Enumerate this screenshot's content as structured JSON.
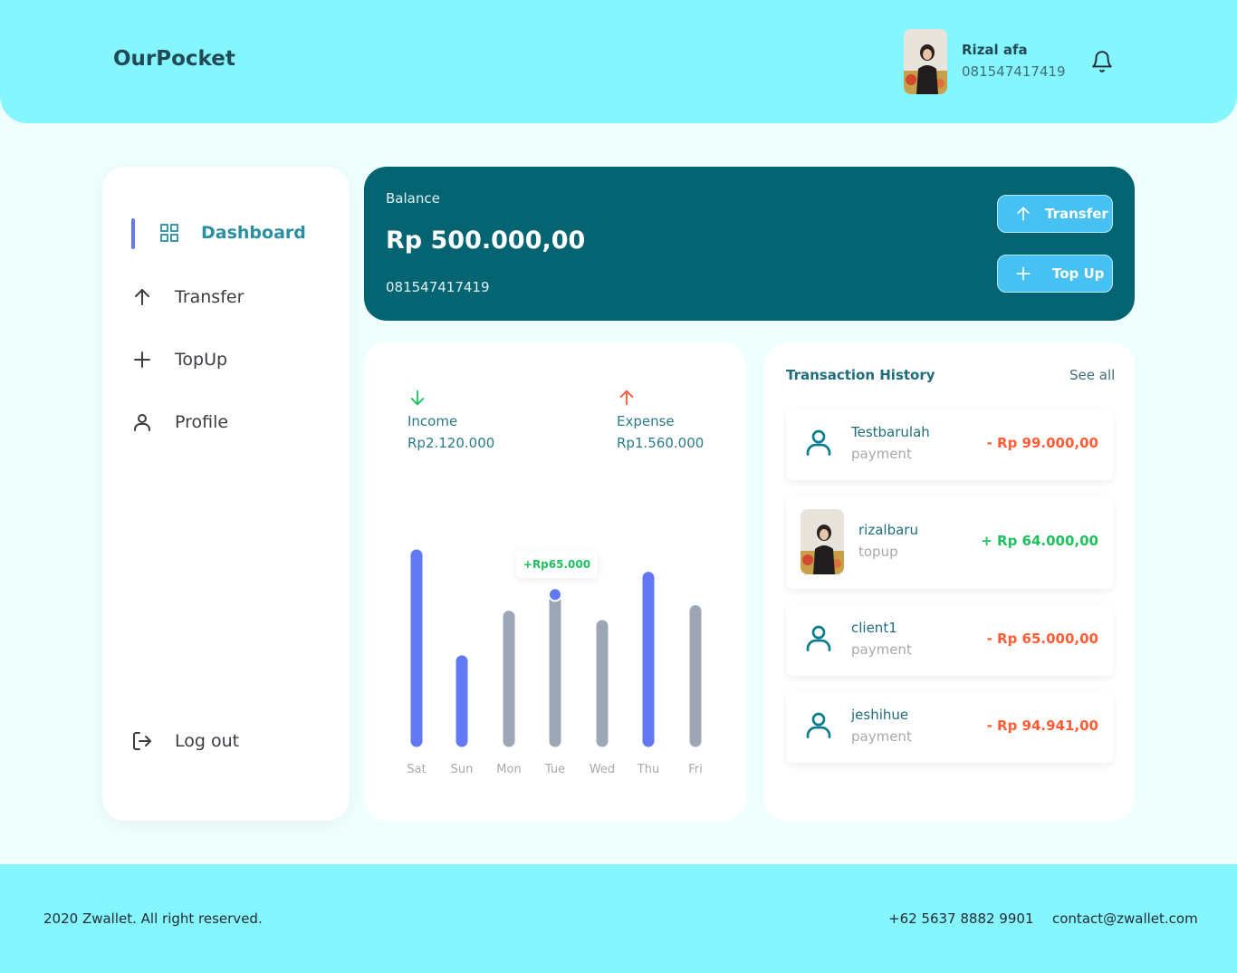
{
  "header": {
    "brand": "OurPocket",
    "user": {
      "name": "Rizal afa",
      "phone": "081547417419"
    }
  },
  "sidebar": {
    "items": [
      {
        "label": "Dashboard",
        "icon": "grid-icon",
        "active": true
      },
      {
        "label": "Transfer",
        "icon": "arrow-up-icon"
      },
      {
        "label": "TopUp",
        "icon": "plus-icon"
      },
      {
        "label": "Profile",
        "icon": "user-icon"
      }
    ],
    "logout": "Log out"
  },
  "balance": {
    "label": "Balance",
    "amount": "Rp 500.000,00",
    "phone": "081547417419",
    "transfer_label": "Transfer",
    "topup_label": "Top Up"
  },
  "stats": {
    "income_label": "Income",
    "income_value": "Rp2.120.000",
    "expense_label": "Expense",
    "expense_value": "Rp1.560.000"
  },
  "chart_data": {
    "type": "bar",
    "categories": [
      "Sat",
      "Sun",
      "Mon",
      "Tue",
      "Wed",
      "Thu",
      "Fri"
    ],
    "values": [
      100,
      43,
      67,
      76,
      62,
      88,
      70
    ],
    "colors": [
      "#6379f4",
      "#6379f4",
      "#9da6b5",
      "#9da6b5",
      "#9da6b5",
      "#6379f4",
      "#9da6b5"
    ],
    "highlight_index": 3,
    "tooltip": "+Rp65.000"
  },
  "history": {
    "title": "Transaction History",
    "see_all": "See all",
    "items": [
      {
        "name": "Testbarulah",
        "type": "payment",
        "amount": "- Rp 99.000,00",
        "sign": "neg",
        "avatar": "user-icon"
      },
      {
        "name": "rizalbaru",
        "type": "topup",
        "amount": "+ Rp 64.000,00",
        "sign": "pos",
        "avatar": "photo"
      },
      {
        "name": "client1",
        "type": "payment",
        "amount": "- Rp 65.000,00",
        "sign": "neg",
        "avatar": "user-icon"
      },
      {
        "name": "jeshihue",
        "type": "payment",
        "amount": "- Rp 94.941,00",
        "sign": "neg",
        "avatar": "user-icon"
      }
    ]
  },
  "footer": {
    "copyright": "2020 Zwallet. All right reserved.",
    "phone": "+62 5637 8882 9901",
    "email": "contact@zwallet.com"
  },
  "colors": {
    "header_bg": "#85f6fe",
    "balance_bg": "#056472",
    "accent": "#6379f4",
    "button": "#47c0f2",
    "income": "#1ec15f",
    "expense": "#ff5b37"
  }
}
